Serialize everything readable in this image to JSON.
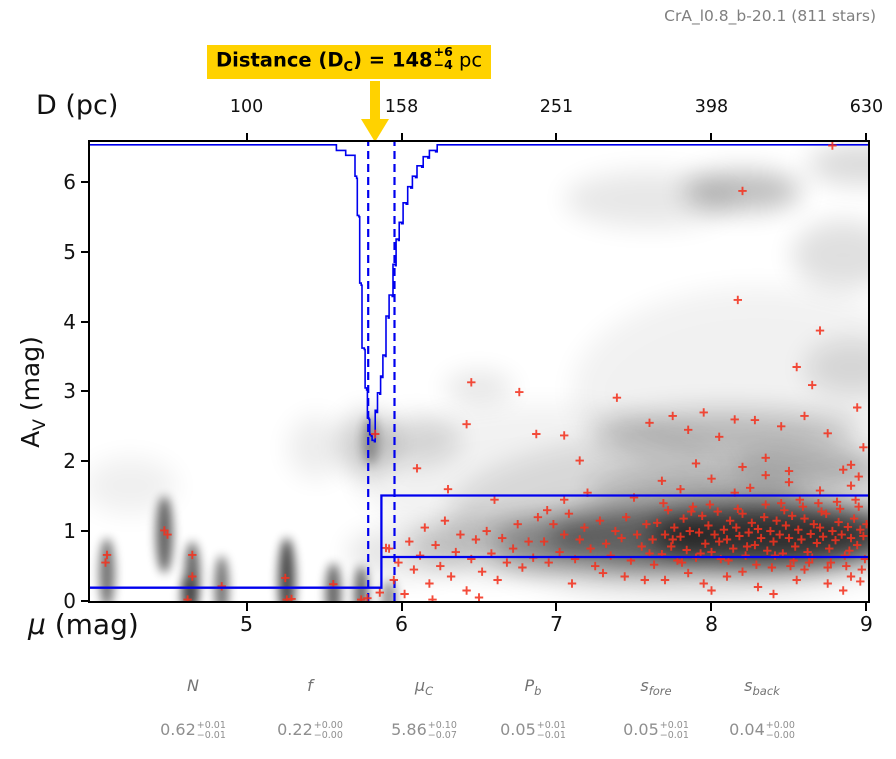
{
  "title": "CrA_l0.8_b-20.1 (811 stars)",
  "annotation": {
    "prefix": "Distance (D",
    "sub": "C",
    "mid": ") = 148",
    "sup": "+6",
    "minus": "−4",
    "suffix": " pc"
  },
  "axes": {
    "top": {
      "label": "D (pc)",
      "ticks": [
        "100",
        "158",
        "251",
        "398",
        "630"
      ]
    },
    "bottom": {
      "label_symbol": "μ",
      "label_rest": " (mag)",
      "ticks": [
        "5",
        "6",
        "7",
        "8",
        "9"
      ]
    },
    "left": {
      "label_main": "A",
      "label_sub": "V",
      "label_rest": " (mag)",
      "ticks": [
        "0",
        "1",
        "2",
        "3",
        "4",
        "5",
        "6"
      ]
    }
  },
  "params": {
    "headers": [
      {
        "main": "N",
        "sub": ""
      },
      {
        "main": "f",
        "sub": ""
      },
      {
        "main": "μ",
        "sub": "C"
      },
      {
        "main": "P",
        "sub": "b"
      },
      {
        "main": "s",
        "sub": "fore"
      },
      {
        "main": "s",
        "sub": "back"
      }
    ],
    "values": [
      {
        "val": "0.62",
        "plus": "+0.01",
        "minus": "−0.01"
      },
      {
        "val": "0.22",
        "plus": "+0.00",
        "minus": "−0.00"
      },
      {
        "val": "5.86",
        "plus": "+0.10",
        "minus": "−0.07"
      },
      {
        "val": "0.05",
        "plus": "+0.01",
        "minus": "−0.01"
      },
      {
        "val": "0.05",
        "plus": "+0.01",
        "minus": "−0.01"
      },
      {
        "val": "0.04",
        "plus": "+0.00",
        "minus": "−0.00"
      }
    ]
  },
  "colors": {
    "blue": "#0000ee",
    "red": "#f2321f",
    "gold": "#ffd200",
    "density": "#000000",
    "title_gray": "#7f7f7f"
  },
  "chart_data": {
    "type": "scatter",
    "title": "CrA_l0.8_b-20.1 (811 stars)",
    "xlabel": "μ (mag)",
    "ylabel": "A_V (mag)",
    "top_axis_label": "D (pc)",
    "xlim": [
      3.99,
      9.01
    ],
    "ylim": [
      0,
      6.57
    ],
    "x_ticks": [
      5,
      6,
      7,
      8,
      9
    ],
    "top_ticks_D_pc": [
      100,
      158,
      251,
      398,
      630
    ],
    "y_ticks": [
      0,
      1,
      2,
      3,
      4,
      5,
      6
    ],
    "n_stars": 811,
    "distance_pc": {
      "value": 148,
      "plus": 6,
      "minus": 4
    },
    "fit": {
      "N": 0.62,
      "f": 0.22,
      "mu_c": 5.86,
      "mu_c_plus": 0.1,
      "mu_c_minus": 0.07,
      "P_b": 0.05,
      "s_fore": 0.05,
      "s_back": 0.04
    },
    "model": {
      "foreground_av": 0.19,
      "background_av_upper": 1.51,
      "background_av_lower": 0.63,
      "step_mu": 5.87,
      "dashed_mu": [
        5.785,
        5.955
      ]
    },
    "pdf_curve_mu_av": [
      [
        3.99,
        6.53
      ],
      [
        5.56,
        6.53
      ],
      [
        5.58,
        6.45
      ],
      [
        5.63,
        6.45
      ],
      [
        5.64,
        6.38
      ],
      [
        5.695,
        6.38
      ],
      [
        5.7,
        6.08
      ],
      [
        5.71,
        6.05
      ],
      [
        5.715,
        5.52
      ],
      [
        5.725,
        5.5
      ],
      [
        5.73,
        4.55
      ],
      [
        5.74,
        4.52
      ],
      [
        5.745,
        3.62
      ],
      [
        5.76,
        3.6
      ],
      [
        5.765,
        3.05
      ],
      [
        5.775,
        3.02
      ],
      [
        5.78,
        2.62
      ],
      [
        5.79,
        2.6
      ],
      [
        5.795,
        2.38
      ],
      [
        5.805,
        2.36
      ],
      [
        5.81,
        2.3
      ],
      [
        5.825,
        2.28
      ],
      [
        5.83,
        2.73
      ],
      [
        5.84,
        2.7
      ],
      [
        5.845,
        2.98
      ],
      [
        5.86,
        2.96
      ],
      [
        5.865,
        3.22
      ],
      [
        5.875,
        3.2
      ],
      [
        5.88,
        3.52
      ],
      [
        5.895,
        3.5
      ],
      [
        5.9,
        4.08
      ],
      [
        5.915,
        4.05
      ],
      [
        5.92,
        4.38
      ],
      [
        5.94,
        4.36
      ],
      [
        5.945,
        4.82
      ],
      [
        5.96,
        4.8
      ],
      [
        5.965,
        5.18
      ],
      [
        5.98,
        5.16
      ],
      [
        5.985,
        5.42
      ],
      [
        6.0,
        5.4
      ],
      [
        6.01,
        5.7
      ],
      [
        6.03,
        5.68
      ],
      [
        6.04,
        5.93
      ],
      [
        6.06,
        5.91
      ],
      [
        6.07,
        6.08
      ],
      [
        6.09,
        6.06
      ],
      [
        6.1,
        6.23
      ],
      [
        6.13,
        6.21
      ],
      [
        6.14,
        6.36
      ],
      [
        6.17,
        6.34
      ],
      [
        6.18,
        6.45
      ],
      [
        6.22,
        6.43
      ],
      [
        6.23,
        6.53
      ],
      [
        9.01,
        6.53
      ]
    ],
    "scatter_sample_mu_av": [
      [
        4.09,
        0.55
      ],
      [
        4.1,
        0.66
      ],
      [
        4.47,
        1.01
      ],
      [
        4.49,
        0.95
      ],
      [
        4.62,
        0.02
      ],
      [
        4.65,
        0.66
      ],
      [
        4.65,
        0.35
      ],
      [
        4.84,
        0.21
      ],
      [
        5.25,
        0.33
      ],
      [
        5.26,
        0.02
      ],
      [
        5.29,
        0.03
      ],
      [
        5.56,
        0.24
      ],
      [
        5.74,
        0.02
      ],
      [
        5.78,
        0.04
      ],
      [
        5.83,
        2.39
      ],
      [
        5.9,
        0.76
      ],
      [
        5.86,
        0.12
      ],
      [
        5.92,
        0.75
      ],
      [
        5.95,
        0.3
      ],
      [
        5.98,
        0.55
      ],
      [
        6.02,
        0.1
      ],
      [
        6.05,
        0.85
      ],
      [
        6.08,
        0.45
      ],
      [
        6.12,
        0.65
      ],
      [
        6.15,
        1.05
      ],
      [
        6.18,
        0.25
      ],
      [
        6.22,
        0.8
      ],
      [
        6.25,
        0.5
      ],
      [
        6.28,
        1.15
      ],
      [
        6.32,
        0.35
      ],
      [
        6.35,
        0.7
      ],
      [
        6.38,
        0.95
      ],
      [
        6.42,
        0.15
      ],
      [
        6.45,
        0.6
      ],
      [
        6.48,
        0.88
      ],
      [
        6.52,
        0.42
      ],
      [
        6.55,
        1.0
      ],
      [
        6.58,
        0.68
      ],
      [
        6.62,
        0.3
      ],
      [
        6.65,
        0.9
      ],
      [
        6.68,
        0.55
      ],
      [
        6.72,
        0.75
      ],
      [
        6.75,
        1.1
      ],
      [
        6.78,
        0.48
      ],
      [
        6.82,
        0.85
      ],
      [
        6.85,
        0.62
      ],
      [
        6.88,
        1.2
      ],
      [
        6.1,
        1.9
      ],
      [
        6.3,
        1.6
      ],
      [
        6.6,
        1.45
      ],
      [
        6.5,
        0.05
      ],
      [
        6.2,
        0.02
      ],
      [
        6.92,
        0.85
      ],
      [
        6.95,
        0.55
      ],
      [
        6.98,
        1.1
      ],
      [
        7.02,
        0.7
      ],
      [
        7.05,
        0.95
      ],
      [
        7.08,
        1.25
      ],
      [
        7.12,
        0.6
      ],
      [
        7.15,
        0.88
      ],
      [
        7.18,
        1.05
      ],
      [
        7.22,
        0.75
      ],
      [
        7.25,
        0.5
      ],
      [
        7.28,
        1.15
      ],
      [
        7.32,
        0.82
      ],
      [
        7.35,
        0.65
      ],
      [
        7.38,
        1.0
      ],
      [
        7.42,
        0.9
      ],
      [
        7.45,
        1.2
      ],
      [
        7.48,
        0.58
      ],
      [
        7.52,
        0.95
      ],
      [
        7.55,
        0.78
      ],
      [
        7.58,
        1.1
      ],
      [
        7.6,
        0.68
      ],
      [
        7.05,
        1.45
      ],
      [
        7.2,
        1.55
      ],
      [
        7.44,
        0.35
      ],
      [
        7.1,
        0.25
      ],
      [
        7.3,
        0.4
      ],
      [
        6.94,
        1.3
      ],
      [
        7.5,
        1.48
      ],
      [
        7.57,
        0.3
      ],
      [
        7.62,
        0.88
      ],
      [
        7.65,
        1.12
      ],
      [
        7.68,
        0.67
      ],
      [
        7.7,
        0.95
      ],
      [
        7.72,
        1.3
      ],
      [
        7.74,
        0.78
      ],
      [
        7.76,
        1.05
      ],
      [
        7.78,
        0.58
      ],
      [
        7.8,
        0.92
      ],
      [
        7.82,
        1.18
      ],
      [
        7.84,
        0.73
      ],
      [
        7.86,
        1.0
      ],
      [
        7.88,
        1.35
      ],
      [
        7.9,
        0.62
      ],
      [
        7.92,
        0.98
      ],
      [
        7.94,
        1.22
      ],
      [
        7.96,
        0.82
      ],
      [
        7.98,
        1.08
      ],
      [
        8.0,
        0.7
      ],
      [
        8.02,
        0.95
      ],
      [
        8.04,
        1.28
      ],
      [
        8.06,
        0.6
      ],
      [
        8.08,
        1.02
      ],
      [
        8.1,
        0.88
      ],
      [
        8.12,
        1.15
      ],
      [
        8.14,
        0.75
      ],
      [
        8.16,
        1.05
      ],
      [
        8.18,
        0.93
      ],
      [
        8.2,
        1.25
      ],
      [
        8.22,
        0.65
      ],
      [
        8.24,
        0.98
      ],
      [
        8.26,
        1.12
      ],
      [
        8.28,
        0.8
      ],
      [
        8.3,
        1.03
      ],
      [
        8.32,
        0.9
      ],
      [
        8.34,
        1.2
      ],
      [
        8.36,
        0.72
      ],
      [
        8.38,
        1.0
      ],
      [
        8.4,
        0.85
      ],
      [
        8.42,
        1.15
      ],
      [
        8.44,
        0.95
      ],
      [
        8.46,
        0.68
      ],
      [
        8.48,
        1.08
      ],
      [
        8.5,
        0.9
      ],
      [
        8.52,
        1.22
      ],
      [
        8.54,
        0.78
      ],
      [
        8.56,
        1.02
      ],
      [
        8.58,
        0.88
      ],
      [
        8.6,
        1.18
      ],
      [
        8.62,
        0.7
      ],
      [
        8.64,
        0.96
      ],
      [
        8.66,
        1.1
      ],
      [
        8.68,
        0.83
      ],
      [
        8.7,
        1.05
      ],
      [
        8.72,
        0.92
      ],
      [
        8.74,
        1.25
      ],
      [
        8.76,
        0.75
      ],
      [
        8.78,
        1.0
      ],
      [
        8.8,
        0.87
      ],
      [
        8.82,
        1.13
      ],
      [
        8.84,
        0.95
      ],
      [
        8.86,
        0.65
      ],
      [
        8.88,
        1.06
      ],
      [
        8.9,
        0.9
      ],
      [
        8.92,
        1.18
      ],
      [
        8.94,
        0.8
      ],
      [
        8.96,
        1.02
      ],
      [
        8.98,
        0.93
      ],
      [
        9.0,
        1.1
      ],
      [
        7.63,
        0.52
      ],
      [
        7.69,
        1.4
      ],
      [
        7.75,
        0.88
      ],
      [
        7.81,
        0.55
      ],
      [
        7.87,
        1.28
      ],
      [
        7.93,
        0.68
      ],
      [
        7.99,
        1.38
      ],
      [
        8.05,
        0.85
      ],
      [
        8.11,
        0.58
      ],
      [
        8.17,
        1.32
      ],
      [
        8.23,
        0.78
      ],
      [
        8.29,
        0.52
      ],
      [
        8.35,
        1.38
      ],
      [
        8.41,
        0.65
      ],
      [
        8.47,
        1.3
      ],
      [
        8.53,
        0.58
      ],
      [
        8.59,
        1.35
      ],
      [
        8.65,
        0.62
      ],
      [
        8.71,
        1.28
      ],
      [
        8.77,
        0.55
      ],
      [
        8.83,
        1.32
      ],
      [
        8.89,
        0.72
      ],
      [
        8.95,
        1.35
      ],
      [
        8.99,
        0.6
      ],
      [
        8.97,
        0.45
      ],
      [
        8.93,
        1.45
      ],
      [
        8.87,
        0.5
      ],
      [
        8.81,
        1.42
      ],
      [
        8.75,
        0.48
      ],
      [
        8.69,
        1.4
      ],
      [
        8.63,
        0.55
      ],
      [
        8.57,
        1.45
      ],
      [
        8.51,
        0.5
      ],
      [
        8.45,
        1.4
      ],
      [
        8.39,
        0.48
      ],
      [
        7.7,
        0.3
      ],
      [
        7.95,
        0.25
      ],
      [
        8.1,
        0.35
      ],
      [
        8.3,
        0.2
      ],
      [
        8.55,
        0.3
      ],
      [
        8.75,
        0.25
      ],
      [
        8.9,
        0.35
      ],
      [
        8.4,
        0.1
      ],
      [
        8.0,
        0.15
      ],
      [
        8.85,
        0.15
      ],
      [
        7.85,
        0.4
      ],
      [
        8.2,
        0.42
      ],
      [
        8.6,
        0.45
      ],
      [
        8.96,
        0.28
      ],
      [
        7.8,
        1.6
      ],
      [
        8.0,
        1.75
      ],
      [
        8.25,
        1.62
      ],
      [
        8.5,
        1.7
      ],
      [
        8.7,
        1.58
      ],
      [
        8.9,
        1.65
      ],
      [
        8.35,
        1.8
      ],
      [
        8.15,
        1.55
      ],
      [
        7.68,
        1.72
      ],
      [
        8.95,
        1.78
      ],
      [
        8.85,
        1.88
      ],
      [
        6.45,
        3.13
      ],
      [
        6.76,
        2.99
      ],
      [
        7.39,
        2.91
      ],
      [
        6.42,
        2.53
      ],
      [
        6.87,
        2.39
      ],
      [
        7.05,
        2.37
      ],
      [
        7.15,
        2.01
      ],
      [
        7.6,
        2.55
      ],
      [
        7.75,
        2.65
      ],
      [
        7.85,
        2.45
      ],
      [
        7.95,
        2.7
      ],
      [
        8.05,
        2.35
      ],
      [
        8.15,
        2.6
      ],
      [
        8.28,
        2.59
      ],
      [
        8.45,
        2.5
      ],
      [
        8.6,
        2.65
      ],
      [
        8.75,
        2.4
      ],
      [
        8.94,
        2.77
      ],
      [
        8.98,
        2.2
      ],
      [
        8.9,
        1.95
      ],
      [
        8.2,
        1.92
      ],
      [
        8.5,
        1.86
      ],
      [
        8.35,
        2.05
      ],
      [
        7.9,
        1.97
      ],
      [
        8.65,
        3.09
      ],
      [
        8.7,
        3.87
      ],
      [
        8.2,
        5.87
      ],
      [
        8.17,
        4.31
      ],
      [
        8.78,
        6.52
      ],
      [
        8.55,
        3.35
      ]
    ],
    "density_blobs": [
      [
        4.1,
        0.4,
        0.05,
        0.5,
        0.55,
        "s"
      ],
      [
        4.47,
        0.95,
        0.055,
        0.55,
        0.6,
        "s"
      ],
      [
        4.65,
        0.35,
        0.05,
        0.5,
        0.6,
        "s"
      ],
      [
        4.62,
        0.05,
        0.045,
        0.3,
        0.5,
        "s"
      ],
      [
        4.84,
        0.2,
        0.045,
        0.45,
        0.55,
        "s"
      ],
      [
        5.26,
        0.3,
        0.055,
        0.6,
        0.7,
        "s"
      ],
      [
        5.56,
        0.12,
        0.05,
        0.42,
        0.6,
        "s"
      ],
      [
        5.74,
        0.1,
        0.045,
        0.4,
        0.6,
        "s"
      ],
      [
        5.8,
        2.3,
        0.05,
        0.35,
        0.3,
        "s"
      ],
      [
        5.92,
        0.04,
        0.05,
        0.25,
        0.4,
        "s"
      ],
      [
        8.45,
        0.95,
        0.85,
        0.42,
        0.65,
        "b"
      ],
      [
        8.0,
        0.92,
        1.05,
        0.5,
        0.4,
        "b"
      ],
      [
        7.3,
        0.85,
        0.7,
        0.45,
        0.28,
        "b"
      ],
      [
        6.6,
        0.8,
        0.55,
        0.4,
        0.16,
        "b"
      ],
      [
        6.05,
        0.7,
        0.4,
        0.35,
        0.1,
        "b"
      ],
      [
        8.1,
        2.45,
        0.85,
        0.3,
        0.2,
        "b"
      ],
      [
        8.2,
        5.87,
        0.38,
        0.28,
        0.26,
        "b"
      ],
      [
        8.85,
        4.95,
        0.33,
        0.5,
        0.12,
        "b"
      ],
      [
        7.6,
        5.75,
        0.55,
        0.4,
        0.09,
        "b"
      ],
      [
        8.97,
        6.25,
        0.35,
        0.3,
        0.14,
        "b"
      ],
      [
        6.1,
        2.3,
        0.28,
        0.35,
        0.12,
        "b"
      ],
      [
        5.78,
        2.25,
        0.17,
        0.45,
        0.2,
        "b"
      ],
      [
        8.9,
        3.35,
        0.3,
        0.4,
        0.11,
        "b"
      ],
      [
        6.5,
        3.05,
        0.22,
        0.22,
        0.1,
        "b"
      ],
      [
        4.25,
        1.65,
        0.3,
        0.4,
        0.06,
        "b"
      ],
      [
        8.6,
        1.9,
        0.5,
        0.3,
        0.2,
        "b"
      ],
      [
        7.9,
        1.6,
        0.7,
        0.3,
        0.16,
        "b"
      ],
      [
        7.9,
        1.2,
        1.6,
        1.2,
        0.1,
        "b"
      ],
      [
        8.3,
        3.0,
        1.2,
        1.5,
        0.05,
        "b"
      ],
      [
        6.9,
        1.8,
        1.2,
        1.0,
        0.05,
        "b"
      ],
      [
        5.45,
        2.2,
        0.18,
        0.45,
        0.07,
        "b"
      ]
    ]
  }
}
